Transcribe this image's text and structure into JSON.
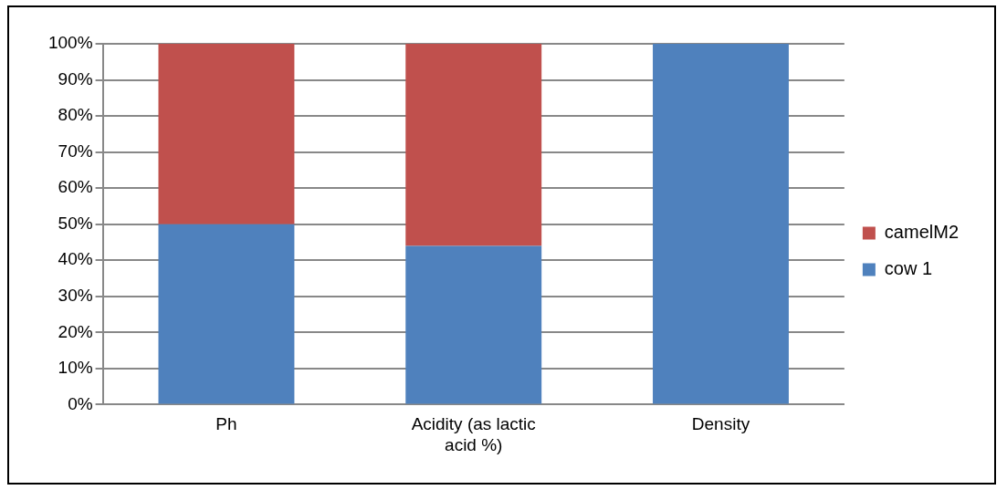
{
  "chart_data": {
    "type": "bar",
    "stacked": true,
    "categories": [
      "Ph",
      "Acidity (as lactic acid %)",
      "Density"
    ],
    "series": [
      {
        "name": "cow 1",
        "color": "#4f81bd",
        "values": [
          50,
          44,
          100
        ]
      },
      {
        "name": "camelM2",
        "color": "#c0504d",
        "values": [
          50,
          56,
          0
        ]
      }
    ],
    "ylim": [
      0,
      100
    ],
    "yticks": [
      {
        "value": 0,
        "label": "0%"
      },
      {
        "value": 10,
        "label": "10%"
      },
      {
        "value": 20,
        "label": "20%"
      },
      {
        "value": 30,
        "label": "30%"
      },
      {
        "value": 40,
        "label": "40%"
      },
      {
        "value": 50,
        "label": "50%"
      },
      {
        "value": 60,
        "label": "60%"
      },
      {
        "value": 70,
        "label": "70%"
      },
      {
        "value": 80,
        "label": "80%"
      },
      {
        "value": 90,
        "label": "90%"
      },
      {
        "value": 100,
        "label": "100%"
      }
    ],
    "grid": "y",
    "legend": "right"
  }
}
